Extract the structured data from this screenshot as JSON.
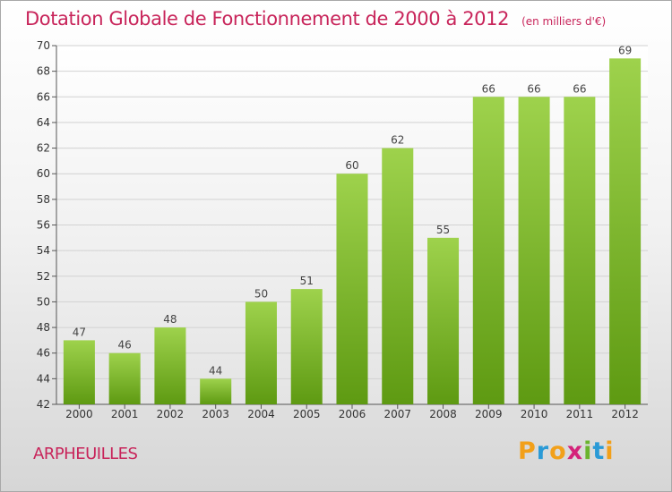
{
  "chart_data": {
    "type": "bar",
    "title": "Dotation Globale de Fonctionnement de 2000 à 2012",
    "subtitle": "(en milliers d'€)",
    "categories": [
      "2000",
      "2001",
      "2002",
      "2003",
      "2004",
      "2005",
      "2006",
      "2007",
      "2008",
      "2009",
      "2010",
      "2011",
      "2012"
    ],
    "values": [
      47,
      46,
      48,
      44,
      50,
      51,
      60,
      62,
      55,
      66,
      66,
      66,
      69
    ],
    "ylim": [
      42,
      70
    ],
    "yticks": [
      42,
      44,
      46,
      48,
      50,
      52,
      54,
      56,
      58,
      60,
      62,
      64,
      66,
      68,
      70
    ],
    "xlabel": "",
    "ylabel": "",
    "grid": true,
    "legend": "none",
    "bar_color_top": "#9ed24c",
    "bar_color_bottom": "#5e9a12",
    "title_color": "#c8245a"
  },
  "commune_name": "ARPHEUILLES",
  "logo": {
    "letters": [
      "P",
      "r",
      "o",
      "x",
      "i",
      "t",
      "i"
    ]
  }
}
